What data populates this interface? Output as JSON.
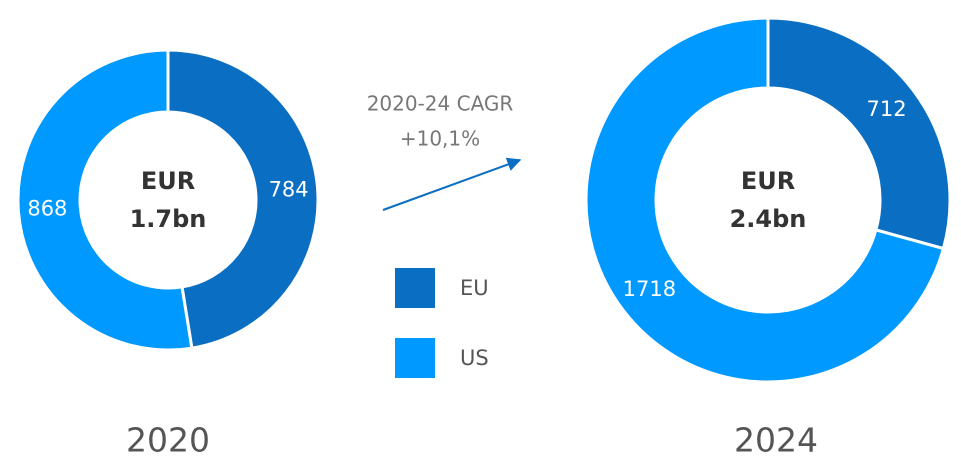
{
  "chart_data": [
    {
      "type": "donut",
      "title": "2020",
      "center_label": [
        "EUR",
        "1.7bn"
      ],
      "categories": [
        "EU",
        "US"
      ],
      "values": [
        784,
        868
      ],
      "colors": [
        "#0a6fc2",
        "#0099ff"
      ]
    },
    {
      "type": "donut",
      "title": "2024",
      "center_label": [
        "EUR",
        "2.4bn"
      ],
      "categories": [
        "EU",
        "US"
      ],
      "values": [
        712,
        1718
      ],
      "colors": [
        "#0a6fc2",
        "#0099ff"
      ]
    }
  ],
  "annotation": [
    "2020-24 CAGR",
    "+10,1%"
  ]
}
